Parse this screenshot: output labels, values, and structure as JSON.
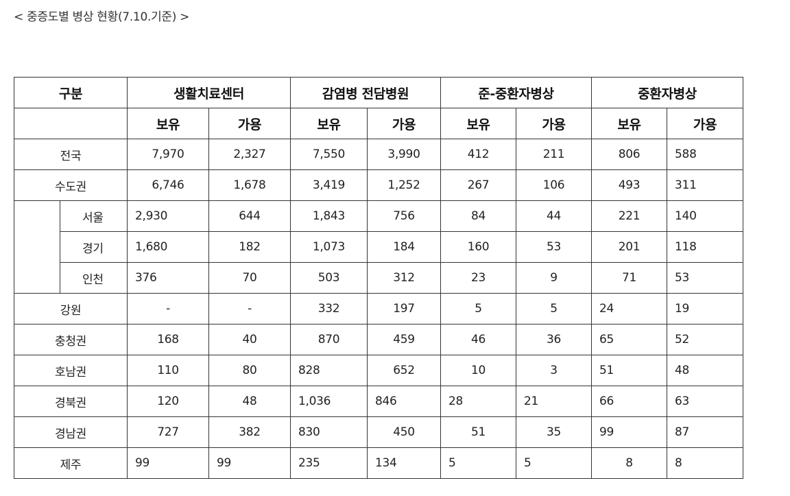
{
  "caption": "< 중증도별 병상 현황(7.10.기준) >",
  "headers": {
    "category": "구분",
    "groups": [
      "생활치료센터",
      "감염병 전담병원",
      "준-중환자병상",
      "중환자병상"
    ],
    "sub": [
      "보유",
      "가용",
      "보유",
      "가용",
      "보유",
      "가용",
      "보유",
      "가용"
    ]
  },
  "rows": [
    {
      "name": "전국",
      "values": [
        "7,970",
        "2,327",
        "7,550",
        "3,990",
        "412",
        "211",
        "806",
        "588"
      ]
    },
    {
      "name": "수도권",
      "values": [
        "6,746",
        "1,678",
        "3,419",
        "1,252",
        "267",
        "106",
        "493",
        "311"
      ]
    },
    {
      "name": "서울",
      "values": [
        "2,930",
        "644",
        "1,843",
        "756",
        "84",
        "44",
        "221",
        "140"
      ]
    },
    {
      "name": "경기",
      "values": [
        "1,680",
        "182",
        "1,073",
        "184",
        "160",
        "53",
        "201",
        "118"
      ]
    },
    {
      "name": "인천",
      "values": [
        "376",
        "70",
        "503",
        "312",
        "23",
        "9",
        "71",
        "53"
      ]
    },
    {
      "name": "강원",
      "values": [
        "-",
        "-",
        "332",
        "197",
        "5",
        "5",
        "24",
        "19"
      ]
    },
    {
      "name": "충청권",
      "values": [
        "168",
        "40",
        "870",
        "459",
        "46",
        "36",
        "65",
        "52"
      ]
    },
    {
      "name": "호남권",
      "values": [
        "110",
        "80",
        "828",
        "652",
        "10",
        "3",
        "51",
        "48"
      ]
    },
    {
      "name": "경북권",
      "values": [
        "120",
        "48",
        "1,036",
        "846",
        "28",
        "21",
        "66",
        "63"
      ]
    },
    {
      "name": "경남권",
      "values": [
        "727",
        "382",
        "830",
        "450",
        "51",
        "35",
        "99",
        "87"
      ]
    },
    {
      "name": "제주",
      "values": [
        "99",
        "99",
        "235",
        "134",
        "5",
        "5",
        "8",
        "8"
      ]
    }
  ]
}
